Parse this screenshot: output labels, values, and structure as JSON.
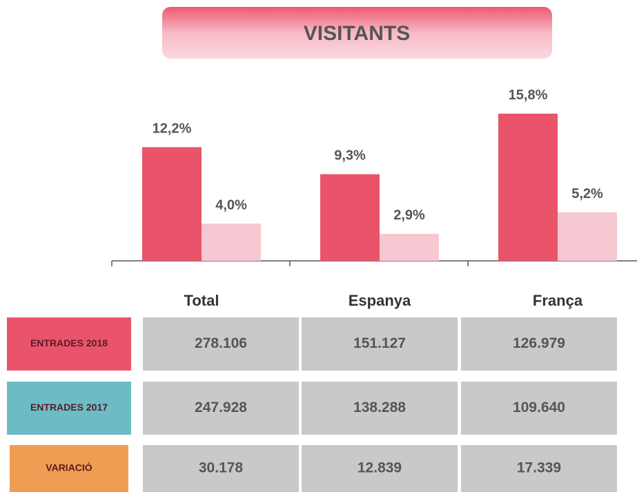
{
  "title": "VISITANTS",
  "chart_data": {
    "type": "bar",
    "categories": [
      "Total",
      "Espanya",
      "França"
    ],
    "series": [
      {
        "color": "#e9546b",
        "values": [
          12.2,
          9.3,
          15.8
        ],
        "value_labels": [
          "12,2%",
          "9,3%",
          "15,8%"
        ]
      },
      {
        "color": "#f8c8d2",
        "values": [
          4.0,
          2.9,
          5.2
        ],
        "value_labels": [
          "4,0%",
          "2,9%",
          "5,2%"
        ]
      }
    ]
  },
  "table": {
    "rows": [
      {
        "label": "ENTRADES 2018",
        "color": "#e9546b",
        "cells": [
          "278.106",
          "151.127",
          "126.979"
        ]
      },
      {
        "label": "ENTRADES 2017",
        "color": "#6cbcc6",
        "cells": [
          "247.928",
          "138.288",
          "109.640"
        ]
      },
      {
        "label": "VARIACIÓ",
        "color": "#f09c52",
        "cells": [
          "30.178",
          "12.839",
          "17.339"
        ]
      }
    ]
  }
}
